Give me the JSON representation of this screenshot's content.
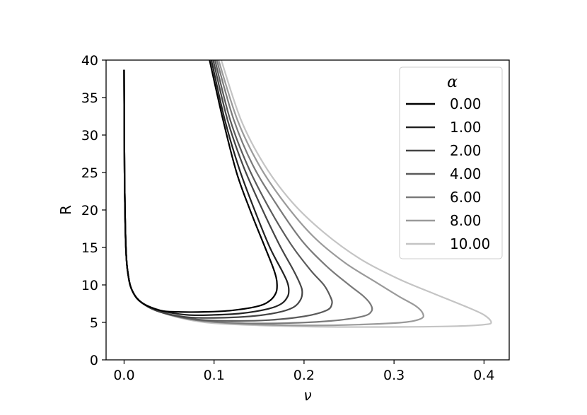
{
  "chart_data": {
    "type": "line",
    "xlabel": "ν",
    "ylabel": "R",
    "xlim": [
      -0.02,
      0.428
    ],
    "ylim": [
      0,
      40
    ],
    "x_ticks": [
      "0.0",
      "0.1",
      "0.2",
      "0.3",
      "0.4"
    ],
    "x_tick_values": [
      0.0,
      0.1,
      0.2,
      0.3,
      0.4
    ],
    "y_ticks": [
      "0",
      "5",
      "10",
      "15",
      "20",
      "25",
      "30",
      "35",
      "40"
    ],
    "y_tick_values": [
      0,
      5,
      10,
      15,
      20,
      25,
      30,
      35,
      40
    ],
    "grid": false,
    "legend": {
      "title": "α",
      "placement": "top-right"
    },
    "series": [
      {
        "name": "0.00",
        "color": "#000000",
        "x": [
          0.095,
          0.11,
          0.125,
          0.14,
          0.155,
          0.165,
          0.169,
          0.17,
          0.169,
          0.163,
          0.15,
          0.12,
          0.09,
          0.06,
          0.04,
          0.02,
          0.01,
          0.005,
          0.002,
          0.0005,
          0.0
        ],
        "y": [
          40,
          32,
          25,
          20,
          15.5,
          12.5,
          11,
          10,
          9,
          8,
          7.2,
          6.6,
          6.4,
          6.4,
          6.6,
          7.6,
          9,
          11,
          15,
          25,
          38.7
        ]
      },
      {
        "name": "1.00",
        "color": "#222222",
        "x": [
          0.097,
          0.112,
          0.128,
          0.145,
          0.162,
          0.175,
          0.181,
          0.183,
          0.182,
          0.175,
          0.16,
          0.13,
          0.1,
          0.07,
          0.04,
          0.02,
          0.01,
          0.005,
          0.002,
          0.0005,
          0.0
        ],
        "y": [
          40,
          32,
          25.5,
          20,
          15,
          12,
          10.5,
          9.5,
          8.5,
          7.5,
          6.8,
          6.2,
          6.0,
          6.0,
          6.6,
          7.6,
          9,
          11,
          15,
          25,
          38.7
        ]
      },
      {
        "name": "2.00",
        "color": "#444444",
        "x": [
          0.099,
          0.115,
          0.132,
          0.152,
          0.172,
          0.188,
          0.196,
          0.198,
          0.196,
          0.188,
          0.17,
          0.14,
          0.1,
          0.07,
          0.04,
          0.02,
          0.01,
          0.005,
          0.002,
          0.0005,
          0.0
        ],
        "y": [
          40,
          32,
          26,
          20.5,
          15.5,
          12,
          10,
          9,
          8,
          7,
          6.3,
          5.8,
          5.6,
          5.7,
          6.4,
          7.6,
          9,
          11,
          15,
          25,
          38.7
        ]
      },
      {
        "name": "4.00",
        "color": "#5a5a5a",
        "x": [
          0.101,
          0.118,
          0.137,
          0.16,
          0.185,
          0.207,
          0.222,
          0.229,
          0.231,
          0.225,
          0.2,
          0.16,
          0.12,
          0.08,
          0.04,
          0.02,
          0.01,
          0.005,
          0.002,
          0.0005,
          0.0
        ],
        "y": [
          40,
          32,
          26,
          20.5,
          15.5,
          12,
          10,
          8.5,
          7.5,
          6.6,
          5.8,
          5.3,
          5.2,
          5.4,
          6.4,
          7.6,
          9,
          11,
          15,
          25,
          38.7
        ]
      },
      {
        "name": "6.00",
        "color": "#7a7a7a",
        "x": [
          0.103,
          0.122,
          0.143,
          0.168,
          0.197,
          0.225,
          0.25,
          0.266,
          0.274,
          0.275,
          0.265,
          0.23,
          0.18,
          0.13,
          0.08,
          0.04,
          0.02,
          0.01,
          0.005,
          0.002,
          0.0005,
          0.0
        ],
        "y": [
          40,
          32,
          26,
          21,
          16,
          12.5,
          10,
          8.5,
          7.4,
          6.5,
          5.8,
          5.2,
          4.9,
          4.9,
          5.3,
          6.4,
          7.6,
          9,
          11,
          15,
          25,
          38.7
        ]
      },
      {
        "name": "8.00",
        "color": "#9a9a9a",
        "x": [
          0.105,
          0.126,
          0.15,
          0.178,
          0.21,
          0.245,
          0.278,
          0.305,
          0.324,
          0.332,
          0.33,
          0.31,
          0.26,
          0.2,
          0.13,
          0.08,
          0.04,
          0.02,
          0.01,
          0.005,
          0.002,
          0.0005,
          0.0
        ],
        "y": [
          40,
          32,
          26,
          21,
          16.5,
          13,
          10.5,
          8.5,
          7.2,
          6.2,
          5.5,
          5.0,
          4.7,
          4.6,
          4.8,
          5.3,
          6.4,
          7.6,
          9,
          11,
          15,
          25,
          38.7
        ]
      },
      {
        "name": "10.00",
        "color": "#c4c4c4",
        "x": [
          0.108,
          0.13,
          0.156,
          0.187,
          0.222,
          0.262,
          0.305,
          0.345,
          0.378,
          0.4,
          0.408,
          0.4,
          0.37,
          0.31,
          0.23,
          0.15,
          0.09,
          0.05,
          0.02,
          0.01,
          0.005,
          0.002,
          0.0005,
          0.0
        ],
        "y": [
          40,
          32,
          26,
          21,
          17,
          13.5,
          10.8,
          8.8,
          7.2,
          6.0,
          5.0,
          4.7,
          4.5,
          4.4,
          4.4,
          4.6,
          5.0,
          6.0,
          7.6,
          9,
          11,
          15,
          25,
          38.7
        ]
      }
    ]
  }
}
